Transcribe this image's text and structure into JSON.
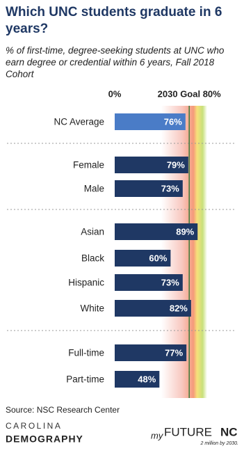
{
  "chart_data": {
    "type": "bar",
    "orientation": "horizontal",
    "title": "Which UNC students graduate in 6 years?",
    "subtitle": "% of first-time, degree-seeking students at UNC who earn degree or credential within 6 years, Fall 2018 Cohort",
    "categories": [
      "NC Average",
      "Female",
      "Male",
      "Asian",
      "Black",
      "Hispanic",
      "White",
      "Full-time",
      "Part-time"
    ],
    "values": [
      76,
      79,
      73,
      89,
      60,
      73,
      82,
      77,
      48
    ],
    "value_labels": [
      "76%",
      "79%",
      "73%",
      "89%",
      "60%",
      "73%",
      "82%",
      "77%",
      "48%"
    ],
    "colors": [
      "#4a7cc7",
      "#1f3864",
      "#1f3864",
      "#1f3864",
      "#1f3864",
      "#1f3864",
      "#1f3864",
      "#1f3864",
      "#1f3864"
    ],
    "xlim": [
      0,
      100
    ],
    "xticks": [
      {
        "value": 0,
        "label": "0%"
      },
      {
        "value": 80,
        "label": "2030 Goal 80%"
      }
    ]
  },
  "footer": {
    "source": "Source: NSC Research Center",
    "left_logo": [
      "CAROLINA",
      "DEMOGRAPHY"
    ],
    "right_logo": [
      "my",
      "FUTURE",
      "NC",
      "2 million by 2030."
    ]
  }
}
